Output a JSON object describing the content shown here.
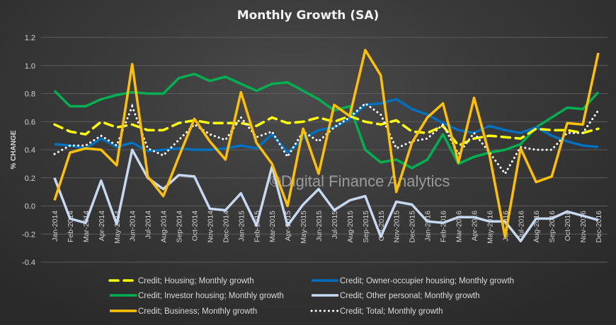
{
  "chart_data": {
    "type": "line",
    "title": "Monthly Growth (SA)",
    "xlabel": "",
    "ylabel": "% CHANGE",
    "ylim": [
      -0.4,
      1.2
    ],
    "yticks": [
      "1.2",
      "1.0",
      "0.8",
      "0.6",
      "0.4",
      "0.2",
      "0.0",
      "-0.2",
      "-0.4"
    ],
    "ytick_values": [
      1.2,
      1.0,
      0.8,
      0.6,
      0.4,
      0.2,
      0.0,
      -0.2,
      -0.4
    ],
    "grid": true,
    "legend_position": "bottom",
    "watermark": "©Digital Finance Analytics",
    "categories": [
      "Jan-2014",
      "Feb-2014",
      "Mar-2014",
      "Apr-2014",
      "May-2014",
      "Jun-2014",
      "Jul-2014",
      "Aug-2014",
      "Sep-2014",
      "Oct-2014",
      "Nov-2014",
      "Dec-2014",
      "Jan-2015",
      "Feb-2015",
      "Mar-2015",
      "Apr-2015",
      "May-2015",
      "Jun-2015",
      "Jul-2015",
      "Aug-2015",
      "Sep-2015",
      "Oct-2015",
      "Nov-2015",
      "Dec-2015",
      "Jan-2016",
      "Feb-2016",
      "Mar-2016",
      "Apr-2016",
      "May-2016",
      "Jun-2016",
      "Jul-2016",
      "Aug-2016",
      "Sep-2016",
      "Oct-2016",
      "Nov-2016",
      "Dec-2016"
    ],
    "series": [
      {
        "name": "Credit; Housing; Monthly growth",
        "color": "#FFFF00",
        "style": "dashed",
        "values": [
          0.58,
          0.53,
          0.51,
          0.6,
          0.56,
          0.58,
          0.54,
          0.54,
          0.59,
          0.61,
          0.59,
          0.59,
          0.59,
          0.57,
          0.63,
          0.59,
          0.6,
          0.63,
          0.6,
          0.64,
          0.6,
          0.58,
          0.61,
          0.53,
          0.52,
          0.57,
          0.43,
          0.48,
          0.5,
          0.49,
          0.48,
          0.55,
          0.54,
          0.54,
          0.52,
          0.55
        ]
      },
      {
        "name": "Credit; Owner-occupier housing; Monthly growth",
        "color": "#0070C0",
        "style": "solid",
        "values": [
          0.44,
          0.43,
          0.41,
          0.48,
          0.42,
          0.45,
          0.39,
          0.4,
          0.41,
          0.4,
          0.4,
          0.41,
          0.43,
          0.41,
          0.51,
          0.38,
          0.48,
          0.54,
          0.56,
          0.62,
          0.72,
          0.73,
          0.76,
          0.69,
          0.65,
          0.59,
          0.54,
          0.52,
          0.57,
          0.54,
          0.52,
          0.56,
          0.5,
          0.46,
          0.43,
          0.42
        ]
      },
      {
        "name": "Credit; Investor housing; Monthly growth",
        "color": "#00B050",
        "style": "solid",
        "values": [
          0.82,
          0.71,
          0.71,
          0.76,
          0.79,
          0.81,
          0.8,
          0.8,
          0.91,
          0.94,
          0.89,
          0.92,
          0.87,
          0.82,
          0.87,
          0.88,
          0.82,
          0.76,
          0.68,
          0.71,
          0.4,
          0.31,
          0.33,
          0.27,
          0.33,
          0.51,
          0.3,
          0.35,
          0.38,
          0.4,
          0.44,
          0.56,
          0.63,
          0.7,
          0.69,
          0.81
        ]
      },
      {
        "name": "Credit; Other personal; Monthly growth",
        "color": "#C6D9F1",
        "style": "solid",
        "values": [
          0.2,
          -0.09,
          -0.12,
          0.18,
          -0.13,
          0.4,
          0.2,
          0.12,
          0.22,
          0.21,
          -0.02,
          -0.03,
          0.09,
          -0.14,
          0.28,
          -0.14,
          0.01,
          0.12,
          -0.03,
          0.04,
          0.07,
          -0.22,
          0.03,
          0.01,
          -0.11,
          -0.12,
          -0.08,
          -0.08,
          -0.11,
          -0.11,
          -0.25,
          -0.09,
          -0.09,
          -0.04,
          -0.07,
          -0.1
        ]
      },
      {
        "name": "Credit; Business; Monthly growth",
        "color": "#FFC000",
        "style": "solid",
        "values": [
          0.04,
          0.38,
          0.41,
          0.4,
          0.29,
          1.01,
          0.21,
          0.07,
          0.35,
          0.62,
          0.46,
          0.33,
          0.81,
          0.45,
          0.3,
          0.0,
          0.55,
          0.23,
          0.72,
          0.64,
          1.11,
          0.93,
          0.1,
          0.45,
          0.63,
          0.73,
          0.31,
          0.77,
          0.36,
          -0.22,
          0.41,
          0.17,
          0.21,
          0.59,
          0.58,
          1.09
        ]
      },
      {
        "name": "Credit; Total; Monthly growth",
        "color": "#FFFFFF",
        "style": "dotted",
        "values": [
          0.37,
          0.43,
          0.43,
          0.5,
          0.43,
          0.71,
          0.41,
          0.36,
          0.47,
          0.58,
          0.51,
          0.47,
          0.63,
          0.49,
          0.53,
          0.35,
          0.53,
          0.46,
          0.56,
          0.63,
          0.73,
          0.65,
          0.41,
          0.46,
          0.48,
          0.58,
          0.37,
          0.52,
          0.38,
          0.23,
          0.42,
          0.4,
          0.4,
          0.52,
          0.52,
          0.68
        ]
      }
    ]
  }
}
